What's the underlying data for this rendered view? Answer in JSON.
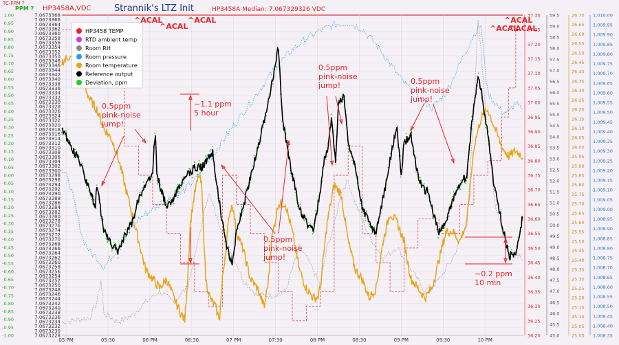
{
  "header": {
    "title": "Strannik's LTZ Init",
    "left_label": "HP3458A,VDC",
    "median_label": "HP3458A Median: 7.067329326 VDC",
    "tc_label": "TC-PPM ?",
    "ppm_label": "PPM ?"
  },
  "colors": {
    "background": "#f4f0f6",
    "hp_temp": "#dd2222",
    "rtd": "#dd33dd",
    "rh": "#888888",
    "pressure": "#2a9ee8",
    "room_temp": "#e8a417",
    "ref": "#000000",
    "dev": "#22cc22",
    "annot": "#ee2222",
    "ppm_axis": "#22aa22",
    "title": "#1a3a8a"
  },
  "chart_data": {
    "type": "line",
    "title": "Strannik's LTZ Init",
    "x_ticks": [
      "05 PM",
      "05:30",
      "06 PM",
      "06:30",
      "07 PM",
      "07:30",
      "08 PM",
      "08:30",
      "09 PM",
      "09:30",
      "10 PM"
    ],
    "x_range": [
      0,
      330
    ],
    "axes": {
      "ppm": {
        "label": "PPM ?",
        "min": -1.0,
        "max": 1.0,
        "step": 0.05
      },
      "vdc": {
        "label": "HP3458A,VDC",
        "min": 7.0673228,
        "max": 7.0673368,
        "step": 2e-07
      },
      "hp_temp": {
        "min": 36.2,
        "max": 37.3,
        "step": 0.05
      },
      "rh": {
        "min": 45.0,
        "max": 59.5,
        "step": 0.5
      },
      "room_temp": {
        "min": 25.0,
        "max": 26.7,
        "step": 0.05
      },
      "pressure": {
        "min": 1008.35,
        "max": 1010.0,
        "step": 0.05
      }
    },
    "legend": {
      "position": "top-left",
      "entries": [
        {
          "name": "HP3458 TEMP",
          "color": "#ee2222"
        },
        {
          "name": "RTD ambient temp",
          "color": "#dd33dd"
        },
        {
          "name": "Room RH",
          "color": "#888888"
        },
        {
          "name": "Room pressure",
          "color": "#2a9ee8"
        },
        {
          "name": "Room temperature",
          "color": "#e8a417"
        },
        {
          "name": "Reference output",
          "color": "#000000"
        },
        {
          "name": "Deviation, ppm",
          "color": "#22cc22"
        }
      ]
    },
    "series": [
      {
        "name": "Reference output",
        "axis": "ppm",
        "points": [
          [
            0,
            0.3
          ],
          [
            5,
            0.2
          ],
          [
            12,
            0.1
          ],
          [
            20,
            -0.1
          ],
          [
            24,
            -0.2
          ],
          [
            25,
            -0.05
          ],
          [
            30,
            -0.35
          ],
          [
            35,
            -0.42
          ],
          [
            40,
            -0.48
          ],
          [
            45,
            -0.38
          ],
          [
            50,
            -0.3
          ],
          [
            55,
            -0.15
          ],
          [
            60,
            -0.05
          ],
          [
            65,
            0.0
          ],
          [
            66,
            0.2
          ],
          [
            67,
            0.25
          ],
          [
            68,
            0.0
          ],
          [
            75,
            -0.2
          ],
          [
            80,
            -0.15
          ],
          [
            85,
            -0.05
          ],
          [
            90,
            0.0
          ],
          [
            95,
            0.05
          ],
          [
            100,
            0.05
          ],
          [
            105,
            0.1
          ],
          [
            108,
            0.15
          ],
          [
            110,
            0.0
          ],
          [
            115,
            -0.3
          ],
          [
            118,
            -0.45
          ],
          [
            122,
            -0.55
          ],
          [
            125,
            -0.35
          ],
          [
            130,
            -0.2
          ],
          [
            135,
            0.0
          ],
          [
            140,
            0.15
          ],
          [
            145,
            0.35
          ],
          [
            150,
            0.55
          ],
          [
            155,
            0.8
          ],
          [
            158,
            0.35
          ],
          [
            160,
            0.25
          ],
          [
            165,
            0.0
          ],
          [
            170,
            -0.2
          ],
          [
            175,
            -0.3
          ],
          [
            180,
            -0.35
          ],
          [
            185,
            -0.1
          ],
          [
            188,
            0.1
          ],
          [
            190,
            0.15
          ],
          [
            193,
            0.35
          ],
          [
            196,
            0.1
          ],
          [
            198,
            0.45
          ],
          [
            202,
            0.5
          ],
          [
            205,
            0.2
          ],
          [
            210,
            0.05
          ],
          [
            215,
            -0.2
          ],
          [
            220,
            -0.3
          ],
          [
            225,
            -0.35
          ],
          [
            230,
            -0.15
          ],
          [
            235,
            0.1
          ],
          [
            240,
            0.3
          ],
          [
            243,
            0.0
          ],
          [
            245,
            0.2
          ],
          [
            250,
            0.25
          ],
          [
            255,
            0.0
          ],
          [
            260,
            -0.1
          ],
          [
            262,
            -0.1
          ],
          [
            265,
            -0.2
          ],
          [
            270,
            -0.35
          ],
          [
            275,
            -0.3
          ],
          [
            280,
            -0.15
          ],
          [
            285,
            -0.05
          ],
          [
            290,
            0.0
          ],
          [
            295,
            0.45
          ],
          [
            298,
            0.6
          ],
          [
            300,
            0.55
          ],
          [
            305,
            0.25
          ],
          [
            310,
            -0.1
          ],
          [
            312,
            -0.15
          ],
          [
            315,
            -0.3
          ],
          [
            320,
            -0.5
          ],
          [
            325,
            -0.5
          ],
          [
            330,
            -0.25
          ]
        ]
      },
      {
        "name": "Room temperature",
        "axis": "room_temp",
        "points": [
          [
            0,
            26.45
          ],
          [
            5,
            26.48
          ],
          [
            10,
            26.45
          ],
          [
            15,
            26.35
          ],
          [
            20,
            26.25
          ],
          [
            25,
            26.2
          ],
          [
            30,
            26.1
          ],
          [
            35,
            26.05
          ],
          [
            38,
            26.0
          ],
          [
            40,
            25.95
          ],
          [
            45,
            25.8
          ],
          [
            50,
            25.65
          ],
          [
            55,
            25.5
          ],
          [
            60,
            25.35
          ],
          [
            65,
            25.3
          ],
          [
            70,
            25.25
          ],
          [
            75,
            25.3
          ],
          [
            80,
            25.2
          ],
          [
            85,
            25.12
          ],
          [
            88,
            25.08
          ],
          [
            90,
            25.3
          ],
          [
            92,
            25.6
          ],
          [
            95,
            25.75
          ],
          [
            98,
            25.85
          ],
          [
            100,
            25.8
          ],
          [
            103,
            25.3
          ],
          [
            106,
            25.2
          ],
          [
            110,
            25.15
          ],
          [
            112,
            25.1
          ],
          [
            113,
            25.1
          ],
          [
            115,
            25.3
          ],
          [
            118,
            25.5
          ],
          [
            120,
            25.65
          ],
          [
            122,
            25.7
          ],
          [
            125,
            25.55
          ],
          [
            130,
            25.45
          ],
          [
            135,
            25.3
          ],
          [
            140,
            25.25
          ],
          [
            145,
            25.15
          ],
          [
            148,
            25.3
          ],
          [
            150,
            25.5
          ],
          [
            155,
            25.7
          ],
          [
            160,
            25.7
          ],
          [
            165,
            25.55
          ],
          [
            170,
            25.35
          ],
          [
            175,
            25.25
          ],
          [
            180,
            25.2
          ],
          [
            183,
            25.2
          ],
          [
            185,
            25.25
          ],
          [
            190,
            25.6
          ],
          [
            195,
            25.8
          ],
          [
            200,
            25.75
          ],
          [
            205,
            25.5
          ],
          [
            210,
            25.35
          ],
          [
            215,
            25.3
          ],
          [
            220,
            25.2
          ],
          [
            225,
            25.25
          ],
          [
            230,
            25.5
          ],
          [
            235,
            25.65
          ],
          [
            240,
            25.6
          ],
          [
            245,
            25.5
          ],
          [
            250,
            25.3
          ],
          [
            255,
            25.25
          ],
          [
            260,
            25.2
          ],
          [
            265,
            25.25
          ],
          [
            270,
            25.4
          ],
          [
            275,
            25.55
          ],
          [
            280,
            25.55
          ],
          [
            285,
            25.5
          ],
          [
            290,
            25.6
          ],
          [
            295,
            26.0
          ],
          [
            300,
            26.15
          ],
          [
            305,
            26.2
          ],
          [
            310,
            26.1
          ],
          [
            315,
            26.0
          ],
          [
            320,
            25.95
          ],
          [
            325,
            25.98
          ],
          [
            330,
            25.95
          ]
        ]
      },
      {
        "name": "Room pressure",
        "axis": "pressure",
        "points": [
          [
            0,
            1009.2
          ],
          [
            5,
            1009.15
          ],
          [
            10,
            1009.0
          ],
          [
            15,
            1008.85
          ],
          [
            20,
            1008.78
          ],
          [
            25,
            1008.75
          ],
          [
            30,
            1008.7
          ],
          [
            35,
            1008.75
          ],
          [
            40,
            1008.8
          ],
          [
            45,
            1008.85
          ],
          [
            55,
            1008.95
          ],
          [
            65,
            1009.0
          ],
          [
            75,
            1009.05
          ],
          [
            85,
            1009.08
          ],
          [
            95,
            1009.15
          ],
          [
            105,
            1009.25
          ],
          [
            115,
            1009.35
          ],
          [
            125,
            1009.45
          ],
          [
            135,
            1009.55
          ],
          [
            145,
            1009.65
          ],
          [
            155,
            1009.75
          ],
          [
            165,
            1009.82
          ],
          [
            175,
            1009.88
          ],
          [
            185,
            1009.92
          ],
          [
            195,
            1009.95
          ],
          [
            205,
            1009.96
          ],
          [
            215,
            1009.93
          ],
          [
            225,
            1009.85
          ],
          [
            235,
            1009.75
          ],
          [
            245,
            1009.65
          ],
          [
            255,
            1009.58
          ],
          [
            265,
            1009.52
          ],
          [
            275,
            1009.6
          ],
          [
            285,
            1009.75
          ],
          [
            295,
            1009.9
          ],
          [
            300,
            1009.95
          ],
          [
            305,
            1009.6
          ],
          [
            310,
            1009.55
          ],
          [
            315,
            1009.5
          ],
          [
            320,
            1009.5
          ],
          [
            325,
            1009.55
          ],
          [
            330,
            1009.5
          ]
        ]
      },
      {
        "name": "Room RH",
        "axis": "rh",
        "points": [
          [
            0,
            45.6
          ],
          [
            10,
            45.7
          ],
          [
            20,
            45.8
          ],
          [
            25,
            46.5
          ],
          [
            28,
            47.5
          ],
          [
            30,
            46.0
          ],
          [
            40,
            45.6
          ],
          [
            50,
            45.9
          ],
          [
            60,
            46.5
          ],
          [
            70,
            47.0
          ],
          [
            80,
            46.5
          ],
          [
            90,
            47.2
          ],
          [
            95,
            48.5
          ],
          [
            100,
            50.0
          ],
          [
            105,
            51.5
          ],
          [
            110,
            50.5
          ],
          [
            120,
            49.0
          ],
          [
            130,
            47.5
          ],
          [
            140,
            46.8
          ],
          [
            150,
            46.8
          ],
          [
            160,
            47.0
          ],
          [
            165,
            48.0
          ],
          [
            170,
            49.0
          ],
          [
            178,
            48.2
          ],
          [
            185,
            47.3
          ],
          [
            190,
            49.0
          ],
          [
            195,
            50.0
          ],
          [
            200,
            51.5
          ],
          [
            205,
            52.0
          ],
          [
            210,
            51.0
          ],
          [
            220,
            49.5
          ],
          [
            230,
            48.5
          ],
          [
            240,
            49.0
          ],
          [
            250,
            48.0
          ],
          [
            260,
            47.0
          ],
          [
            270,
            47.5
          ],
          [
            280,
            48.5
          ],
          [
            290,
            50.0
          ],
          [
            295,
            55.0
          ],
          [
            298,
            59.3
          ],
          [
            300,
            58.0
          ],
          [
            305,
            54.0
          ],
          [
            310,
            51.0
          ],
          [
            315,
            50.0
          ],
          [
            320,
            49.0
          ],
          [
            325,
            48.8
          ],
          [
            330,
            48.5
          ]
        ]
      },
      {
        "name": "HP3458 TEMP",
        "axis": "hp_temp",
        "points": [
          [
            0,
            37.25
          ],
          [
            40,
            37.25
          ],
          [
            45,
            36.85
          ],
          [
            55,
            36.75
          ],
          [
            65,
            36.65
          ],
          [
            75,
            36.55
          ],
          [
            85,
            36.45
          ],
          [
            95,
            36.35
          ],
          [
            105,
            36.3
          ],
          [
            115,
            36.75
          ],
          [
            125,
            36.65
          ],
          [
            135,
            36.55
          ],
          [
            145,
            36.45
          ],
          [
            155,
            36.35
          ],
          [
            165,
            36.25
          ],
          [
            175,
            36.3
          ],
          [
            185,
            36.35
          ],
          [
            195,
            36.75
          ],
          [
            205,
            36.85
          ],
          [
            215,
            36.55
          ],
          [
            225,
            36.45
          ],
          [
            235,
            36.35
          ],
          [
            245,
            36.5
          ],
          [
            255,
            36.6
          ],
          [
            270,
            36.55
          ],
          [
            285,
            36.65
          ],
          [
            295,
            36.75
          ],
          [
            305,
            36.8
          ],
          [
            315,
            36.95
          ],
          [
            320,
            37.05
          ],
          [
            325,
            37.25
          ],
          [
            330,
            37.25
          ]
        ]
      }
    ]
  },
  "annotations": {
    "acal": [
      "^ACAL",
      "^ACAL",
      "^ACAL",
      "^ACAL",
      "^ACAL",
      "^ACAL"
    ],
    "jump1": [
      "0.5ppm",
      "pink-noise",
      "jump!"
    ],
    "jump2": [
      "0.5ppm",
      "pink-noise",
      "jump!"
    ],
    "jump3": [
      "0.5ppm",
      "pink-noise",
      "jump!"
    ],
    "jump4": [
      "0.5ppm",
      "pink-noise",
      "jump!"
    ],
    "range1": [
      "~1.1 ppm",
      "5 hour"
    ],
    "range2": [
      "~0.2 ppm",
      "10 min"
    ]
  }
}
